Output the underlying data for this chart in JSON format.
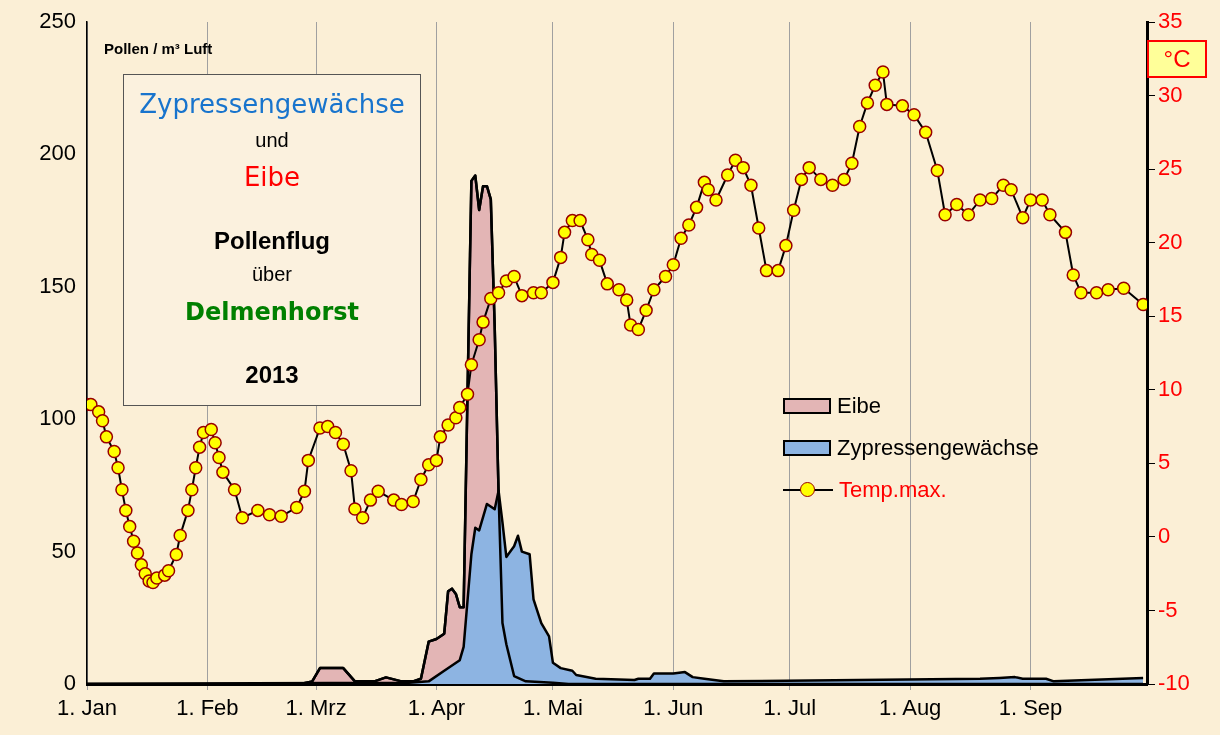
{
  "chart_data": {
    "type": "area",
    "ylabel": "Pollen / m³ Luft",
    "y2label": "°C",
    "annotations": [
      "Zypressengewächse",
      "und",
      "Eibe",
      "Pollenflug",
      "über",
      "Delmenhorst",
      "2013"
    ],
    "xlim": [
      "2013-01-01",
      "2013-10-01"
    ],
    "xticks": [
      {
        "value": "2013-01-01",
        "label": "1. Jan"
      },
      {
        "value": "2013-02-01",
        "label": "1. Feb"
      },
      {
        "value": "2013-03-01",
        "label": "1. Mrz"
      },
      {
        "value": "2013-04-01",
        "label": "1. Apr"
      },
      {
        "value": "2013-05-01",
        "label": "1. Mai"
      },
      {
        "value": "2013-06-01",
        "label": "1. Jun"
      },
      {
        "value": "2013-07-01",
        "label": "1. Jul"
      },
      {
        "value": "2013-08-01",
        "label": "1. Aug"
      },
      {
        "value": "2013-09-01",
        "label": "1. Sep"
      }
    ],
    "ylim": [
      0,
      250
    ],
    "yticks": [
      0,
      50,
      100,
      150,
      200,
      250
    ],
    "y2lim": [
      -10,
      35
    ],
    "y2ticks": [
      -10,
      -5,
      0,
      5,
      10,
      15,
      20,
      25,
      30,
      35
    ],
    "grid": "x",
    "legend": "right",
    "series": [
      {
        "name": "Eibe",
        "color": "#e3b5b5",
        "x": [
          "2013-01-01",
          "2013-02-25",
          "2013-02-28",
          "2013-03-02",
          "2013-03-08",
          "2013-03-11",
          "2013-03-16",
          "2013-03-19",
          "2013-03-23",
          "2013-03-26",
          "2013-03-28",
          "2013-03-30",
          "2013-04-01",
          "2013-04-03",
          "2013-04-04",
          "2013-04-05",
          "2013-04-06",
          "2013-04-07",
          "2013-04-08",
          "2013-04-09",
          "2013-04-10",
          "2013-04-11",
          "2013-04-12",
          "2013-04-13",
          "2013-04-14",
          "2013-04-15",
          "2013-04-16",
          "2013-04-17",
          "2013-04-18",
          "2013-04-19",
          "2013-04-21",
          "2013-04-24",
          "2013-05-01",
          "2013-05-05",
          "2013-09-30"
        ],
        "values": [
          0,
          0,
          1,
          6,
          6,
          1,
          1,
          2.5,
          1,
          1,
          2,
          16,
          17,
          19,
          35,
          36,
          34,
          29,
          29,
          110,
          190,
          192,
          179,
          188,
          188,
          183,
          135,
          72,
          23,
          15,
          3,
          1,
          0.5,
          0,
          0
        ]
      },
      {
        "name": "Zypressengewächse",
        "color": "#8db4e2",
        "x": [
          "2013-01-01",
          "2013-03-25",
          "2013-03-30",
          "2013-04-03",
          "2013-04-07",
          "2013-04-08",
          "2013-04-10",
          "2013-04-11",
          "2013-04-12",
          "2013-04-14",
          "2013-04-16",
          "2013-04-17",
          "2013-04-18",
          "2013-04-19",
          "2013-04-21",
          "2013-04-22",
          "2013-04-23",
          "2013-04-25",
          "2013-04-26",
          "2013-04-28",
          "2013-04-30",
          "2013-05-01",
          "2013-05-03",
          "2013-05-06",
          "2013-05-07",
          "2013-05-12",
          "2013-05-22",
          "2013-05-23",
          "2013-05-26",
          "2013-05-27",
          "2013-06-01",
          "2013-06-04",
          "2013-06-06",
          "2013-06-09",
          "2013-06-14",
          "2013-08-19",
          "2013-08-24",
          "2013-08-28",
          "2013-08-30",
          "2013-09-05",
          "2013-09-07",
          "2013-09-30"
        ],
        "values": [
          0,
          0.5,
          1,
          5,
          9,
          14,
          49,
          59,
          58,
          68,
          66,
          73,
          61,
          48,
          52,
          56,
          50,
          49,
          32,
          23,
          18,
          8,
          6,
          5,
          3.4,
          2,
          1.5,
          2,
          2,
          4,
          4,
          4.5,
          2.6,
          2,
          1,
          2,
          2.3,
          2.6,
          2,
          2,
          1,
          2.3
        ]
      },
      {
        "name": "Temp.max.",
        "type": "line",
        "axis": "y2",
        "marker": "circle",
        "color": "#ffff00",
        "x": [
          "2013-01-01",
          "2013-01-02",
          "2013-01-04",
          "2013-01-05",
          "2013-01-06",
          "2013-01-08",
          "2013-01-09",
          "2013-01-10",
          "2013-01-11",
          "2013-01-12",
          "2013-01-13",
          "2013-01-14",
          "2013-01-15",
          "2013-01-16",
          "2013-01-17",
          "2013-01-18",
          "2013-01-19",
          "2013-01-21",
          "2013-01-22",
          "2013-01-24",
          "2013-01-25",
          "2013-01-27",
          "2013-01-28",
          "2013-01-29",
          "2013-01-30",
          "2013-01-31",
          "2013-02-02",
          "2013-02-03",
          "2013-02-04",
          "2013-02-05",
          "2013-02-08",
          "2013-02-10",
          "2013-02-14",
          "2013-02-17",
          "2013-02-20",
          "2013-02-24",
          "2013-02-26",
          "2013-02-27",
          "2013-03-02",
          "2013-03-04",
          "2013-03-06",
          "2013-03-08",
          "2013-03-10",
          "2013-03-11",
          "2013-03-13",
          "2013-03-15",
          "2013-03-17",
          "2013-03-21",
          "2013-03-23",
          "2013-03-26",
          "2013-03-28",
          "2013-03-30",
          "2013-04-01",
          "2013-04-02",
          "2013-04-04",
          "2013-04-06",
          "2013-04-07",
          "2013-04-09",
          "2013-04-10",
          "2013-04-12",
          "2013-04-13",
          "2013-04-15",
          "2013-04-17",
          "2013-04-19",
          "2013-04-21",
          "2013-04-23",
          "2013-04-26",
          "2013-04-28",
          "2013-05-01",
          "2013-05-03",
          "2013-05-04",
          "2013-05-06",
          "2013-05-08",
          "2013-05-10",
          "2013-05-11",
          "2013-05-13",
          "2013-05-15",
          "2013-05-18",
          "2013-05-20",
          "2013-05-21",
          "2013-05-23",
          "2013-05-25",
          "2013-05-27",
          "2013-05-30",
          "2013-06-01",
          "2013-06-03",
          "2013-06-05",
          "2013-06-07",
          "2013-06-09",
          "2013-06-10",
          "2013-06-12",
          "2013-06-15",
          "2013-06-17",
          "2013-06-19",
          "2013-06-21",
          "2013-06-23",
          "2013-06-25",
          "2013-06-28",
          "2013-06-30",
          "2013-07-02",
          "2013-07-04",
          "2013-07-06",
          "2013-07-09",
          "2013-07-12",
          "2013-07-15",
          "2013-07-17",
          "2013-07-19",
          "2013-07-21",
          "2013-07-23",
          "2013-07-25",
          "2013-07-26",
          "2013-07-30",
          "2013-08-02",
          "2013-08-05",
          "2013-08-08",
          "2013-08-10",
          "2013-08-13",
          "2013-08-16",
          "2013-08-19",
          "2013-08-22",
          "2013-08-25",
          "2013-08-27",
          "2013-08-30",
          "2013-09-01",
          "2013-09-04",
          "2013-09-06",
          "2013-09-10",
          "2013-09-12",
          "2013-09-14",
          "2013-09-18",
          "2013-09-21",
          "2013-09-25",
          "2013-09-30"
        ],
        "values": [
          9,
          9,
          8.5,
          7.9,
          6.8,
          5.8,
          4.7,
          3.2,
          1.8,
          0.7,
          -0.3,
          -1.1,
          -1.9,
          -2.5,
          -3,
          -3.1,
          -2.8,
          -2.6,
          -2.3,
          -1.2,
          0.1,
          1.8,
          3.2,
          4.7,
          6.1,
          7.1,
          7.3,
          6.4,
          5.4,
          4.4,
          3.2,
          1.3,
          1.8,
          1.5,
          1.4,
          2,
          3.1,
          5.2,
          7.4,
          7.5,
          7.1,
          6.3,
          4.5,
          1.9,
          1.3,
          2.5,
          3.1,
          2.5,
          2.2,
          2.4,
          3.9,
          4.9,
          5.2,
          6.8,
          7.6,
          8.1,
          8.8,
          9.7,
          11.7,
          13.4,
          14.6,
          16.2,
          16.6,
          17.4,
          17.7,
          16.4,
          16.6,
          16.6,
          17.3,
          19,
          20.7,
          21.5,
          21.5,
          20.2,
          19.2,
          18.8,
          17.2,
          16.8,
          16.1,
          14.4,
          14.1,
          15.4,
          16.8,
          17.7,
          18.5,
          20.3,
          21.2,
          22.4,
          24.1,
          23.6,
          22.9,
          24.6,
          25.6,
          25.1,
          23.9,
          21,
          18.1,
          18.1,
          19.8,
          22.2,
          24.3,
          25.1,
          24.3,
          23.9,
          24.3,
          25.4,
          27.9,
          29.5,
          30.7,
          31.6,
          29.4,
          29.3,
          28.7,
          27.5,
          24.9,
          21.9,
          22.6,
          21.9,
          22.9,
          23,
          23.9,
          23.6,
          21.7,
          22.9,
          22.9,
          21.9,
          20.7,
          17.8,
          16.6,
          16.6,
          16.8,
          16.9,
          15.8
        ]
      }
    ]
  }
}
